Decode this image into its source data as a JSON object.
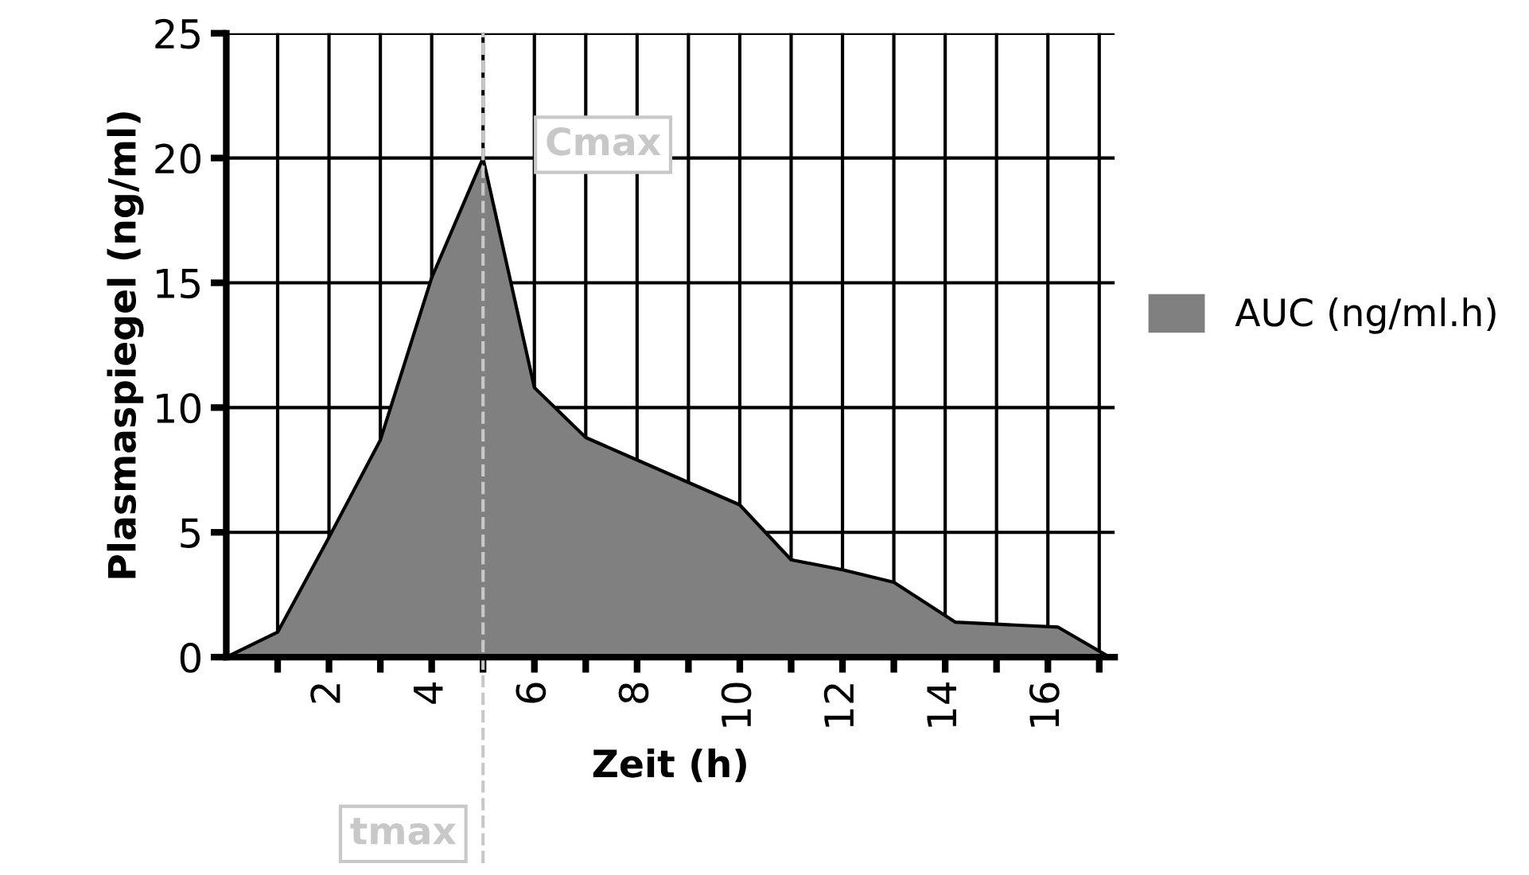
{
  "chart_data": {
    "type": "area",
    "xlabel": "Zeit (h)",
    "ylabel": "Plasmaspiegel (ng/ml)",
    "x": [
      0,
      1,
      2,
      3,
      4,
      5,
      6,
      7,
      8,
      9,
      10,
      11,
      12,
      13,
      14.2,
      16.2,
      17.2
    ],
    "series": [
      {
        "name": "AUC (ng/ml.h)",
        "color": "#808080",
        "values": [
          0,
          1,
          4.8,
          8.7,
          15.2,
          20,
          10.8,
          8.8,
          7.9,
          7.0,
          6.1,
          3.9,
          3.5,
          3.0,
          1.4,
          1.2,
          0
        ]
      }
    ],
    "xlim": [
      0,
      17.3
    ],
    "ylim": [
      0,
      25
    ],
    "xticks": [
      {
        "value": 1,
        "label": null
      },
      2,
      {
        "value": 3,
        "label": null
      },
      4,
      {
        "value": 5,
        "label": null
      },
      6,
      {
        "value": 7,
        "label": null
      },
      8,
      {
        "value": 9,
        "label": null
      },
      10,
      {
        "value": 11,
        "label": null
      },
      12,
      {
        "value": 13,
        "label": null
      },
      14,
      {
        "value": 15,
        "label": null
      },
      16,
      {
        "value": 17,
        "label": null
      }
    ],
    "yticks": [
      0,
      5,
      10,
      15,
      20,
      25
    ],
    "ref_lines": [
      {
        "axis": "x",
        "value": 5,
        "label": "tmax",
        "color": "#c8c8c8",
        "line_style": "dashed"
      }
    ],
    "annotations": [
      {
        "text": "Cmax",
        "x": 5,
        "y": 20
      }
    ],
    "grid": true,
    "legend": "right"
  }
}
